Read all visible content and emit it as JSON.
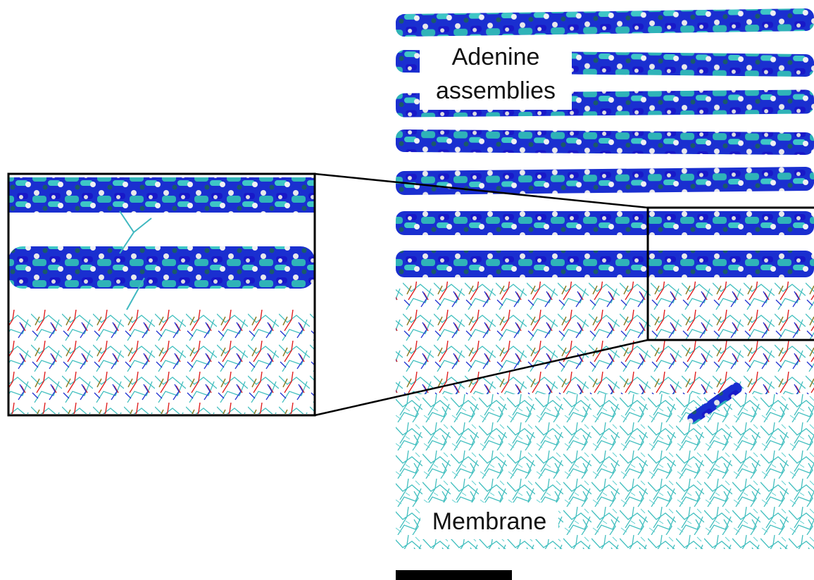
{
  "annotations": {
    "adenine": {
      "lines": [
        "Adenine",
        "assemblies"
      ]
    },
    "membrane": "Membrane"
  }
}
